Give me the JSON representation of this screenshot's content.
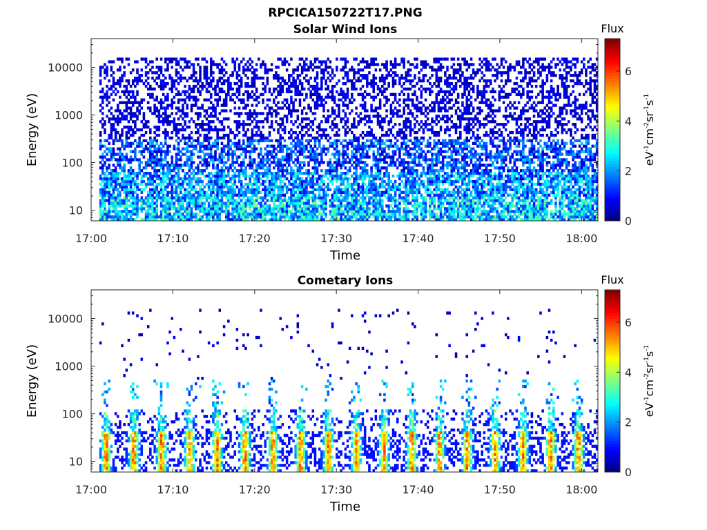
{
  "figure": {
    "title": "RPCICA150722T17.PNG"
  },
  "chart_data": [
    {
      "type": "heatmap",
      "title": "Solar Wind Ions",
      "xlabel": "Time",
      "ylabel": "Energy (eV)",
      "x_ticks": [
        "17:00",
        "17:10",
        "17:20",
        "17:30",
        "17:40",
        "17:50",
        "18:00"
      ],
      "x_range": [
        "17:00",
        "18:02"
      ],
      "y_scale": "log",
      "y_ticks": [
        10,
        100,
        1000,
        10000
      ],
      "y_tick_labels": [
        "10",
        "100",
        "1000",
        "10000"
      ],
      "y_range": [
        6,
        40000
      ],
      "colorbar": {
        "title": "Flux",
        "label": "eV-1cm-2sr-1s-1",
        "ticks": [
          0,
          2,
          4,
          6
        ],
        "range": [
          0,
          7.3
        ],
        "colormap": "jet"
      },
      "data_start": "17:01",
      "data_end": "18:02",
      "description_of_values": [
        {
          "energy_range_eV": [
            6,
            20
          ],
          "typical_flux": [
            1,
            3.5
          ]
        },
        {
          "energy_range_eV": [
            20,
            60
          ],
          "typical_flux": [
            1,
            3
          ]
        },
        {
          "energy_range_eV": [
            60,
            300
          ],
          "typical_flux": [
            0.5,
            2.5
          ]
        },
        {
          "energy_range_eV": [
            300,
            15000
          ],
          "typical_flux": [
            0.3,
            1
          ]
        }
      ]
    },
    {
      "type": "heatmap",
      "title": "Cometary Ions",
      "xlabel": "Time",
      "ylabel": "Energy (eV)",
      "x_ticks": [
        "17:00",
        "17:10",
        "17:20",
        "17:30",
        "17:40",
        "17:50",
        "18:00"
      ],
      "x_range": [
        "17:00",
        "18:02"
      ],
      "y_scale": "log",
      "y_ticks": [
        10,
        100,
        1000,
        10000
      ],
      "y_tick_labels": [
        "10",
        "100",
        "1000",
        "10000"
      ],
      "y_range": [
        6,
        40000
      ],
      "colorbar": {
        "title": "Flux",
        "label": "eV-1cm-2sr-1s-1",
        "ticks": [
          0,
          2,
          4,
          6
        ],
        "range": [
          0,
          7.3
        ],
        "colormap": "jet"
      },
      "data_start": "17:01",
      "data_end": "18:02",
      "burst_peak_flux": 6,
      "burst_peak_energy_eV": [
        12,
        40
      ]
    }
  ],
  "colors": {
    "axis": "#262626",
    "background": "#ffffff"
  }
}
